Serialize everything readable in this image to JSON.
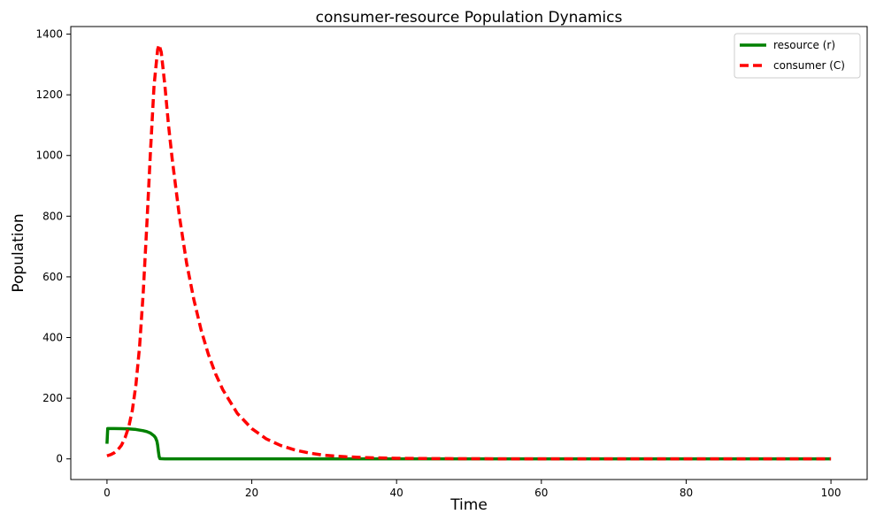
{
  "chart_data": {
    "type": "line",
    "title": "consumer-resource Population Dynamics",
    "xlabel": "Time",
    "ylabel": "Population",
    "xlim": [
      -5,
      105
    ],
    "ylim": [
      -68,
      1425
    ],
    "xticks": [
      0,
      20,
      40,
      60,
      80,
      100
    ],
    "yticks": [
      0,
      200,
      400,
      600,
      800,
      1000,
      1200,
      1400
    ],
    "grid": false,
    "legend_position": "top-right",
    "series": [
      {
        "name": "resource (r)",
        "color": "#008000",
        "dash": "solid",
        "x": [
          0,
          0.1,
          0.5,
          1,
          2,
          3,
          4,
          5,
          5.5,
          6,
          6.5,
          6.7,
          6.9,
          7,
          7.1,
          7.2,
          7.3,
          8,
          10,
          20,
          40,
          60,
          80,
          100
        ],
        "y": [
          50,
          100,
          100,
          100,
          99.5,
          99,
          97,
          93,
          90,
          85,
          76,
          70,
          58,
          45,
          25,
          8,
          1,
          0,
          0,
          0,
          0,
          0,
          0,
          0
        ]
      },
      {
        "name": "consumer (C)",
        "color": "#ff0000",
        "dash": "dashed",
        "x": [
          0,
          0.5,
          1,
          1.5,
          2,
          2.5,
          3,
          3.5,
          4,
          4.5,
          5,
          5.5,
          6,
          6.5,
          7,
          7.2,
          7.5,
          8,
          8.5,
          9,
          10,
          11,
          12,
          13,
          14,
          15,
          16,
          18,
          20,
          22,
          24,
          26,
          28,
          30,
          33,
          36,
          40,
          45,
          50,
          60,
          70,
          80,
          90,
          100
        ],
        "y": [
          10,
          14,
          20,
          30,
          45,
          70,
          105,
          160,
          245,
          370,
          545,
          770,
          1010,
          1230,
          1350,
          1365,
          1340,
          1230,
          1100,
          990,
          800,
          645,
          525,
          425,
          345,
          280,
          228,
          150,
          100,
          66,
          44,
          29,
          19,
          12,
          7,
          4,
          2,
          1,
          0.5,
          0,
          0,
          0,
          0,
          0
        ]
      }
    ]
  }
}
